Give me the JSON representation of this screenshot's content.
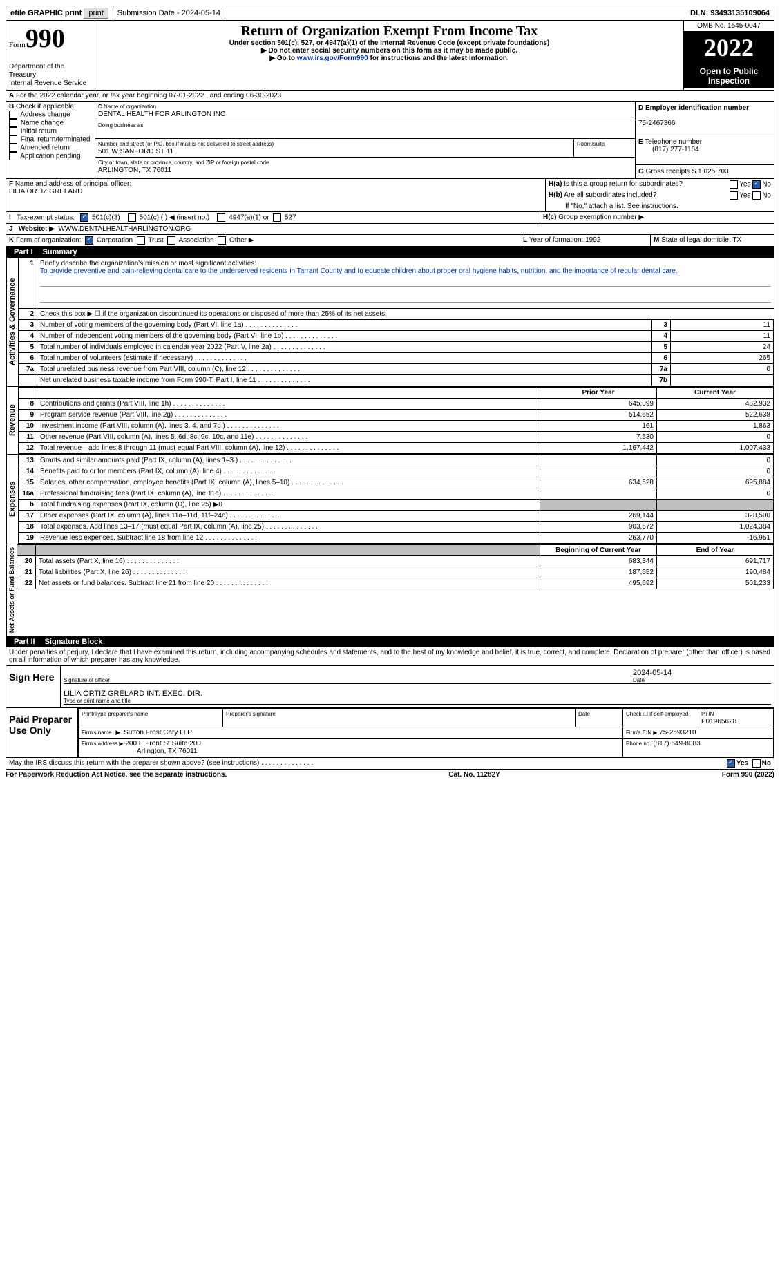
{
  "topbar": {
    "efile": "efile GRAPHIC print",
    "submission": "Submission Date - 2024-05-14",
    "dln": "DLN: 93493135109064"
  },
  "header": {
    "form_word": "Form",
    "form_num": "990",
    "dept": "Department of the Treasury",
    "irs": "Internal Revenue Service",
    "title": "Return of Organization Exempt From Income Tax",
    "sub1": "Under section 501(c), 527, or 4947(a)(1) of the Internal Revenue Code (except private foundations)",
    "sub2": "▶ Do not enter social security numbers on this form as it may be made public.",
    "sub3_pre": "▶ Go to ",
    "sub3_link": "www.irs.gov/Form990",
    "sub3_post": " for instructions and the latest information.",
    "omb": "OMB No. 1545-0047",
    "year": "2022",
    "open": "Open to Public Inspection"
  },
  "A": {
    "text": "For the 2022 calendar year, or tax year beginning 07-01-2022    , and ending 06-30-2023"
  },
  "B": {
    "label": "Check if applicable:",
    "opts": [
      "Address change",
      "Name change",
      "Initial return",
      "Final return/terminated",
      "Amended return",
      "Application pending"
    ]
  },
  "C": {
    "name_lbl": "Name of organization",
    "name": "DENTAL HEALTH FOR ARLINGTON INC",
    "dba_lbl": "Doing business as",
    "dba": "",
    "street_lbl": "Number and street (or P.O. box if mail is not delivered to street address)",
    "street": "501 W SANFORD ST 11",
    "room_lbl": "Room/suite",
    "room": "",
    "city_lbl": "City or town, state or province, country, and ZIP or foreign postal code",
    "city": "ARLINGTON, TX  76011"
  },
  "D": {
    "lbl": "Employer identification number",
    "val": "75-2467366"
  },
  "E": {
    "lbl": "Telephone number",
    "val": "(817) 277-1184"
  },
  "G": {
    "lbl": "Gross receipts $",
    "val": "1,025,703"
  },
  "F": {
    "lbl": "Name and address of principal officer:",
    "val": "LILIA ORTIZ GRELARD"
  },
  "H": {
    "a": "Is this a group return for subordinates?",
    "b": "Are all subordinates included?",
    "bno": "If \"No,\" attach a list. See instructions.",
    "c": "Group exemption number ▶",
    "yes": "Yes",
    "no": "No"
  },
  "I": {
    "lbl": "Tax-exempt status:",
    "o1": "501(c)(3)",
    "o2": "501(c) (  ) ◀ (insert no.)",
    "o3": "4947(a)(1) or",
    "o4": "527"
  },
  "J": {
    "lbl": "Website: ▶",
    "val": "WWW.DENTALHEALTHARLINGTON.ORG"
  },
  "K": {
    "lbl": "Form of organization:",
    "o1": "Corporation",
    "o2": "Trust",
    "o3": "Association",
    "o4": "Other ▶"
  },
  "L": {
    "lbl": "Year of formation:",
    "val": "1992"
  },
  "M": {
    "lbl": "State of legal domicile:",
    "val": "TX"
  },
  "part1": {
    "num": "Part I",
    "title": "Summary"
  },
  "sections": {
    "ag": "Activities & Governance",
    "rev": "Revenue",
    "exp": "Expenses",
    "na": "Net Assets or Fund Balances"
  },
  "s1": {
    "lbl": "Briefly describe the organization's mission or most significant activities:",
    "val": "To provide preventive and pain-relieving dental care to the underserved residents in Tarrant County and to educate children about proper oral hygiene habits, nutrition, and the importance of regular dental care."
  },
  "s2": "Check this box ▶ ☐ if the organization discontinued its operations or disposed of more than 25% of its net assets.",
  "lines": {
    "3": {
      "d": "Number of voting members of the governing body (Part VI, line 1a)",
      "b": "3",
      "v": "11"
    },
    "4": {
      "d": "Number of independent voting members of the governing body (Part VI, line 1b)",
      "b": "4",
      "v": "11"
    },
    "5": {
      "d": "Total number of individuals employed in calendar year 2022 (Part V, line 2a)",
      "b": "5",
      "v": "24"
    },
    "6": {
      "d": "Total number of volunteers (estimate if necessary)",
      "b": "6",
      "v": "265"
    },
    "7a": {
      "d": "Total unrelated business revenue from Part VIII, column (C), line 12",
      "b": "7a",
      "v": "0"
    },
    "7b": {
      "d": "Net unrelated business taxable income from Form 990-T, Part I, line 11",
      "b": "7b",
      "v": ""
    }
  },
  "colhdr": {
    "prior": "Prior Year",
    "curr": "Current Year",
    "beg": "Beginning of Current Year",
    "end": "End of Year"
  },
  "rev": [
    {
      "n": "8",
      "d": "Contributions and grants (Part VIII, line 1h)",
      "p": "645,099",
      "c": "482,932"
    },
    {
      "n": "9",
      "d": "Program service revenue (Part VIII, line 2g)",
      "p": "514,652",
      "c": "522,638"
    },
    {
      "n": "10",
      "d": "Investment income (Part VIII, column (A), lines 3, 4, and 7d )",
      "p": "161",
      "c": "1,863"
    },
    {
      "n": "11",
      "d": "Other revenue (Part VIII, column (A), lines 5, 6d, 8c, 9c, 10c, and 11e)",
      "p": "7,530",
      "c": "0"
    },
    {
      "n": "12",
      "d": "Total revenue—add lines 8 through 11 (must equal Part VIII, column (A), line 12)",
      "p": "1,167,442",
      "c": "1,007,433"
    }
  ],
  "exp": [
    {
      "n": "13",
      "d": "Grants and similar amounts paid (Part IX, column (A), lines 1–3 )",
      "p": "",
      "c": "0"
    },
    {
      "n": "14",
      "d": "Benefits paid to or for members (Part IX, column (A), line 4)",
      "p": "",
      "c": "0"
    },
    {
      "n": "15",
      "d": "Salaries, other compensation, employee benefits (Part IX, column (A), lines 5–10)",
      "p": "634,528",
      "c": "695,884"
    },
    {
      "n": "16a",
      "d": "Professional fundraising fees (Part IX, column (A), line 11e)",
      "p": "",
      "c": "0"
    },
    {
      "n": "b",
      "d": "Total fundraising expenses (Part IX, column (D), line 25) ▶0",
      "grey": true
    },
    {
      "n": "17",
      "d": "Other expenses (Part IX, column (A), lines 11a–11d, 11f–24e)",
      "p": "269,144",
      "c": "328,500"
    },
    {
      "n": "18",
      "d": "Total expenses. Add lines 13–17 (must equal Part IX, column (A), line 25)",
      "p": "903,672",
      "c": "1,024,384"
    },
    {
      "n": "19",
      "d": "Revenue less expenses. Subtract line 18 from line 12",
      "p": "263,770",
      "c": "-16,951"
    }
  ],
  "na": [
    {
      "n": "20",
      "d": "Total assets (Part X, line 16)",
      "p": "683,344",
      "c": "691,717"
    },
    {
      "n": "21",
      "d": "Total liabilities (Part X, line 26)",
      "p": "187,652",
      "c": "190,484"
    },
    {
      "n": "22",
      "d": "Net assets or fund balances. Subtract line 21 from line 20",
      "p": "495,692",
      "c": "501,233"
    }
  ],
  "part2": {
    "num": "Part II",
    "title": "Signature Block"
  },
  "penalty": "Under penalties of perjury, I declare that I have examined this return, including accompanying schedules and statements, and to the best of my knowledge and belief, it is true, correct, and complete. Declaration of preparer (other than officer) is based on all information of which preparer has any knowledge.",
  "sign": {
    "here": "Sign Here",
    "sig_lbl": "Signature of officer",
    "date": "2024-05-14",
    "name": "LILIA ORTIZ GRELARD  INT. EXEC. DIR.",
    "name_lbl": "Type or print name and title"
  },
  "prep": {
    "title": "Paid Preparer Use Only",
    "h1": "Print/Type preparer's name",
    "h2": "Preparer's signature",
    "h3": "Date",
    "h4": "Check ☐ if self-employed",
    "h5": "PTIN",
    "ptin": "P01965628",
    "firm_lbl": "Firm's name",
    "firm": "Sutton Frost Cary LLP",
    "ein_lbl": "Firm's EIN ▶",
    "ein": "75-2593210",
    "addr_lbl": "Firm's address ▶",
    "addr1": "200 E Front St Suite 200",
    "addr2": "Arlington, TX  76011",
    "phone_lbl": "Phone no.",
    "phone": "(817) 649-8083"
  },
  "discuss": "May the IRS discuss this return with the preparer shown above? (see instructions)",
  "footer": {
    "l": "For Paperwork Reduction Act Notice, see the separate instructions.",
    "m": "Cat. No. 11282Y",
    "r": "Form 990 (2022)"
  }
}
